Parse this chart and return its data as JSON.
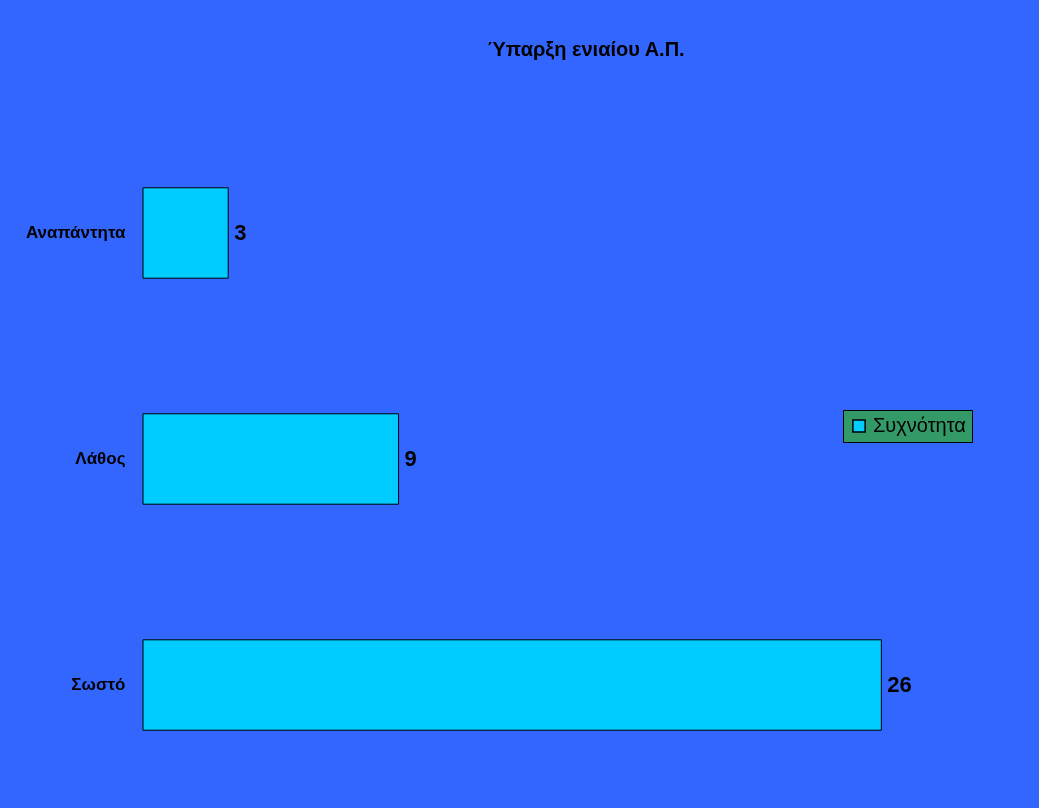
{
  "chart_data": {
    "type": "bar",
    "orientation": "horizontal",
    "title": "Ύπαρξη ενιαίου Α.Π.",
    "categories": [
      "Αναπάντητα",
      "Λάθος",
      "Σωστό"
    ],
    "series": [
      {
        "name": "Συχνότητα",
        "color": "#00ccff",
        "values": [
          3,
          9,
          26
        ]
      }
    ],
    "data_labels": true,
    "legend": "right"
  }
}
